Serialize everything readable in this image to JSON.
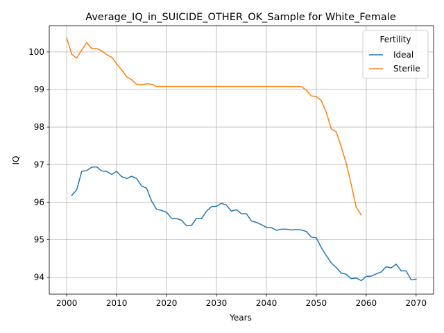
{
  "chart_data": {
    "type": "line",
    "title": "Average_IQ_in_SUICIDE_OTHER_OK_Sample for White_Female",
    "xlabel": "Years",
    "ylabel": "IQ",
    "xlim": [
      1996.5,
      2073.5
    ],
    "ylim": [
      93.55,
      100.7
    ],
    "xticks": [
      2000,
      2010,
      2020,
      2030,
      2040,
      2050,
      2060,
      2070
    ],
    "yticks": [
      94,
      95,
      96,
      97,
      98,
      99,
      100
    ],
    "grid": true,
    "legend": {
      "title": "Fertility",
      "position": "top-right"
    },
    "series": [
      {
        "name": "Ideal",
        "color": "#1f77b4",
        "x": [
          2001,
          2002,
          2003,
          2004,
          2005,
          2006,
          2007,
          2008,
          2009,
          2010,
          2011,
          2012,
          2013,
          2014,
          2015,
          2016,
          2017,
          2018,
          2019,
          2020,
          2021,
          2022,
          2023,
          2024,
          2025,
          2026,
          2027,
          2028,
          2029,
          2030,
          2031,
          2032,
          2033,
          2034,
          2035,
          2036,
          2037,
          2038,
          2039,
          2040,
          2041,
          2042,
          2043,
          2044,
          2045,
          2046,
          2047,
          2048,
          2049,
          2050,
          2051,
          2052,
          2053,
          2054,
          2055,
          2056,
          2057,
          2058,
          2059,
          2060,
          2061,
          2062,
          2063,
          2064,
          2065,
          2066,
          2067,
          2068,
          2069,
          2070
        ],
        "values": [
          96.18,
          96.33,
          96.82,
          96.84,
          96.93,
          96.94,
          96.83,
          96.82,
          96.74,
          96.82,
          96.68,
          96.63,
          96.69,
          96.63,
          96.43,
          96.37,
          96.03,
          95.81,
          95.78,
          95.73,
          95.57,
          95.56,
          95.52,
          95.37,
          95.38,
          95.57,
          95.56,
          95.76,
          95.88,
          95.89,
          95.97,
          95.92,
          95.76,
          95.8,
          95.69,
          95.69,
          95.5,
          95.46,
          95.4,
          95.33,
          95.32,
          95.25,
          95.28,
          95.28,
          95.26,
          95.27,
          95.26,
          95.22,
          95.07,
          95.05,
          94.79,
          94.58,
          94.38,
          94.26,
          94.11,
          94.08,
          93.96,
          93.98,
          93.91,
          94.02,
          94.03,
          94.09,
          94.14,
          94.28,
          94.25,
          94.35,
          94.17,
          94.17,
          93.93,
          93.95
        ]
      },
      {
        "name": "Sterile",
        "color": "#ff7f0e",
        "x": [
          2000,
          2001,
          2002,
          2003,
          2004,
          2005,
          2006,
          2007,
          2008,
          2009,
          2010,
          2011,
          2012,
          2013,
          2014,
          2015,
          2016,
          2017,
          2018,
          2019,
          2020,
          2021,
          2022,
          2023,
          2024,
          2025,
          2026,
          2027,
          2028,
          2029,
          2030,
          2031,
          2032,
          2033,
          2034,
          2035,
          2036,
          2037,
          2038,
          2039,
          2040,
          2041,
          2042,
          2043,
          2044,
          2045,
          2046,
          2047,
          2048,
          2049,
          2050,
          2051,
          2052,
          2053,
          2054,
          2055,
          2056,
          2057,
          2058,
          2059
        ],
        "values": [
          100.37,
          99.94,
          99.84,
          100.05,
          100.25,
          100.09,
          100.09,
          100.03,
          99.93,
          99.86,
          99.69,
          99.52,
          99.34,
          99.26,
          99.14,
          99.13,
          99.15,
          99.14,
          99.08,
          99.08,
          99.08,
          99.08,
          99.08,
          99.08,
          99.08,
          99.08,
          99.08,
          99.08,
          99.08,
          99.08,
          99.08,
          99.08,
          99.08,
          99.08,
          99.08,
          99.08,
          99.08,
          99.08,
          99.08,
          99.08,
          99.08,
          99.08,
          99.08,
          99.08,
          99.08,
          99.08,
          99.08,
          99.08,
          98.98,
          98.83,
          98.81,
          98.71,
          98.39,
          97.95,
          97.87,
          97.47,
          97.03,
          96.47,
          95.86,
          95.66
        ]
      }
    ]
  }
}
